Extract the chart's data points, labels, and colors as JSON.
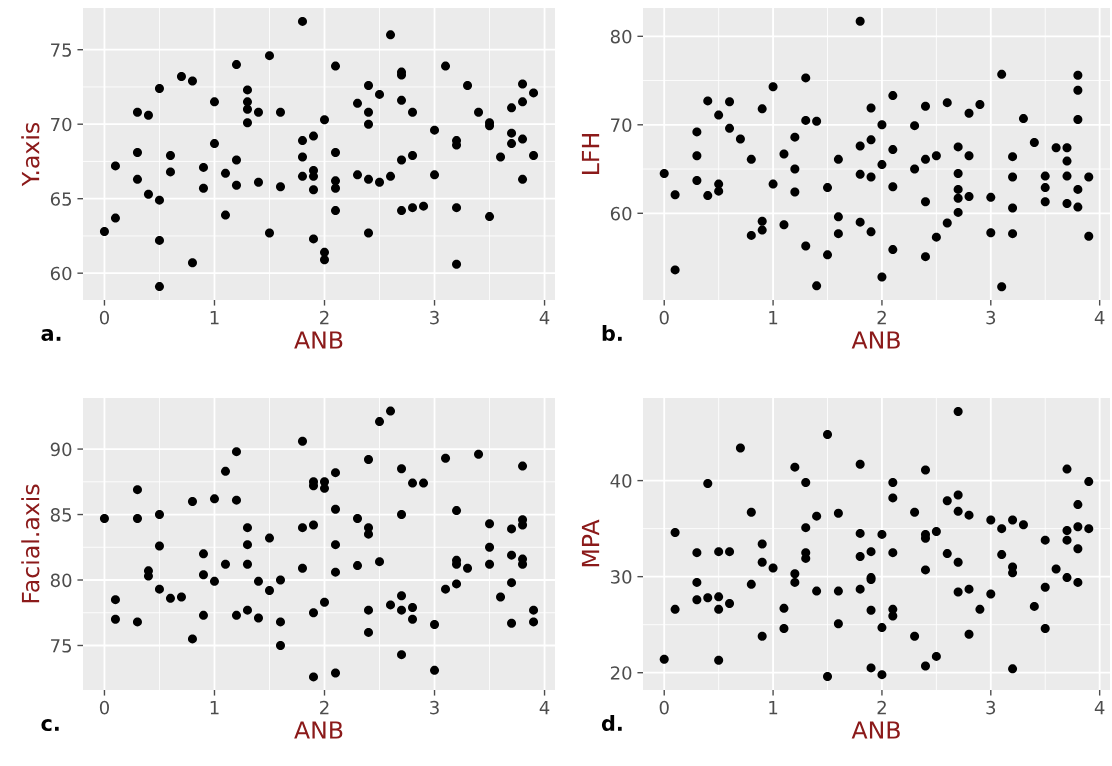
{
  "chart_data": [
    {
      "type": "scatter",
      "xlabel": "ANB",
      "ylabel": "Y.axis",
      "annotations": [
        "a."
      ],
      "xlim": [
        -0.195,
        4.095
      ],
      "xticks": [
        0,
        1,
        2,
        3,
        4
      ],
      "ylim": [
        58.2,
        77.8
      ],
      "yticks": [
        60,
        65,
        70,
        75
      ],
      "grid": true,
      "marker": "circle",
      "series": [
        {
          "color": "#000000",
          "x": [
            1.8,
            2.6,
            1.5,
            1.2,
            2.1,
            3.1,
            2.7,
            2.7,
            0.7,
            0.8,
            0.5,
            1.3,
            2.4,
            2.5,
            3.3,
            3.8,
            3.9,
            3.8,
            3.7,
            1.0,
            1.3,
            1.3,
            1.4,
            1.6,
            0.3,
            0.4,
            1.3,
            2.0,
            2.3,
            2.4,
            2.4,
            2.7,
            2.8,
            3.4,
            3.5,
            3.5,
            3.0,
            3.2,
            3.2,
            3.7,
            3.8,
            3.7,
            1.9,
            1.8,
            1.0,
            0.3,
            0.6,
            1.8,
            2.1,
            2.8,
            2.7,
            3.6,
            3.9,
            0.1,
            0.6,
            0.9,
            1.2,
            1.1,
            1.9,
            1.9,
            1.8,
            2.3,
            2.4,
            2.5,
            2.6,
            3.0,
            2.1,
            2.1,
            0.3,
            0.9,
            1.2,
            1.4,
            1.6,
            1.9,
            0.4,
            0.5,
            3.8,
            2.1,
            2.7,
            2.8,
            2.9,
            3.2,
            3.5,
            0.1,
            1.1,
            0.0,
            0.5,
            1.5,
            2.4,
            1.9,
            2.0,
            2.0,
            0.8,
            3.2,
            0.5
          ],
          "values": [
            76.9,
            76.0,
            74.6,
            74.0,
            73.9,
            73.9,
            73.5,
            73.3,
            73.2,
            72.9,
            72.4,
            72.3,
            72.6,
            72.0,
            72.6,
            72.7,
            72.1,
            71.5,
            71.1,
            71.5,
            71.5,
            71.0,
            70.8,
            70.8,
            70.8,
            70.6,
            70.1,
            70.3,
            71.4,
            70.8,
            70.0,
            71.6,
            70.8,
            70.8,
            70.1,
            69.9,
            69.6,
            68.9,
            68.6,
            69.4,
            69.0,
            68.7,
            69.2,
            68.9,
            68.7,
            68.1,
            67.9,
            67.8,
            68.1,
            67.9,
            67.6,
            67.8,
            67.9,
            67.2,
            66.8,
            67.1,
            67.6,
            66.7,
            66.9,
            66.5,
            66.5,
            66.6,
            66.3,
            66.1,
            66.5,
            66.6,
            66.2,
            65.7,
            66.3,
            65.7,
            65.9,
            66.1,
            65.8,
            65.6,
            65.3,
            64.9,
            66.3,
            64.2,
            64.2,
            64.4,
            64.5,
            64.4,
            63.8,
            63.7,
            63.9,
            62.8,
            62.2,
            62.7,
            62.7,
            62.3,
            61.4,
            60.9,
            60.7,
            60.6,
            59.1
          ]
        }
      ]
    },
    {
      "type": "scatter",
      "xlabel": "ANB",
      "ylabel": "LFH",
      "annotations": [
        "b."
      ],
      "xlim": [
        -0.195,
        4.095
      ],
      "xticks": [
        0,
        1,
        2,
        3,
        4
      ],
      "ylim": [
        50.2,
        83.2
      ],
      "yticks": [
        60,
        70,
        80
      ],
      "grid": true,
      "marker": "circle",
      "series": [
        {
          "color": "#000000",
          "x": [
            1.8,
            3.1,
            3.8,
            3.8,
            3.8,
            1.3,
            1.0,
            2.1,
            0.4,
            0.6,
            0.9,
            1.9,
            2.4,
            2.6,
            2.9,
            2.8,
            0.5,
            1.3,
            1.4,
            2.0,
            2.3,
            3.3,
            0.3,
            0.6,
            0.7,
            1.2,
            3.4,
            1.8,
            1.9,
            2.1,
            2.7,
            3.6,
            3.7,
            3.7,
            0.3,
            0.8,
            1.1,
            1.6,
            2.4,
            2.5,
            2.8,
            3.2,
            2.0,
            0.0,
            1.2,
            2.3,
            1.8,
            1.9,
            2.7,
            3.2,
            3.5,
            3.7,
            3.9,
            0.3,
            0.5,
            0.5,
            1.0,
            0.1,
            0.4,
            1.2,
            1.5,
            2.1,
            2.7,
            2.7,
            2.8,
            3.0,
            3.5,
            3.8,
            2.4,
            3.5,
            3.7,
            3.8,
            3.2,
            2.7,
            1.6,
            0.9,
            0.9,
            0.8,
            1.1,
            1.8,
            1.9,
            1.6,
            2.6,
            2.5,
            3.0,
            3.2,
            3.9,
            1.3,
            1.5,
            2.1,
            2.4,
            0.1,
            2.0,
            1.4,
            3.1
          ],
          "values": [
            81.7,
            75.7,
            75.6,
            73.9,
            70.6,
            75.3,
            74.3,
            73.3,
            72.7,
            72.6,
            71.8,
            71.9,
            72.1,
            72.5,
            72.3,
            71.3,
            71.1,
            70.5,
            70.4,
            70.0,
            69.9,
            70.7,
            69.2,
            69.6,
            68.4,
            68.6,
            68.0,
            67.6,
            68.3,
            67.2,
            67.5,
            67.4,
            67.4,
            65.9,
            66.5,
            66.1,
            66.7,
            66.1,
            66.1,
            66.5,
            66.5,
            66.4,
            65.5,
            64.5,
            65.0,
            65.0,
            64.4,
            64.1,
            64.5,
            64.1,
            64.2,
            64.2,
            64.1,
            63.7,
            63.3,
            62.5,
            63.3,
            62.1,
            62.0,
            62.4,
            62.9,
            63.0,
            62.7,
            61.7,
            61.9,
            61.8,
            62.9,
            62.7,
            61.3,
            61.3,
            61.1,
            60.7,
            60.6,
            60.1,
            59.6,
            59.1,
            58.1,
            57.5,
            58.7,
            59.0,
            57.9,
            57.7,
            58.9,
            57.3,
            57.8,
            57.7,
            57.4,
            56.3,
            55.3,
            55.9,
            55.1,
            53.6,
            52.8,
            51.8,
            51.7
          ]
        }
      ]
    },
    {
      "type": "scatter",
      "xlabel": "ANB",
      "ylabel": "Facial.axis",
      "annotations": [
        "c."
      ],
      "xlim": [
        -0.195,
        4.095
      ],
      "xticks": [
        0,
        1,
        2,
        3,
        4
      ],
      "ylim": [
        71.6,
        93.9
      ],
      "yticks": [
        75,
        80,
        85,
        90
      ],
      "grid": true,
      "marker": "circle",
      "series": [
        {
          "color": "#000000",
          "x": [
            2.6,
            2.5,
            1.8,
            1.2,
            3.4,
            2.4,
            3.1,
            3.8,
            1.1,
            2.7,
            2.1,
            1.9,
            1.9,
            2.0,
            2.0,
            2.8,
            2.9,
            0.3,
            0.8,
            1.0,
            1.2,
            2.1,
            3.2,
            0.0,
            0.3,
            0.5,
            2.7,
            2.3,
            3.8,
            3.8,
            3.5,
            3.7,
            1.3,
            1.8,
            1.9,
            2.4,
            2.4,
            1.5,
            0.5,
            1.3,
            2.1,
            3.5,
            3.7,
            3.8,
            3.8,
            0.9,
            2.5,
            3.2,
            3.2,
            3.3,
            3.5,
            1.1,
            1.3,
            1.8,
            2.3,
            2.1,
            0.4,
            0.4,
            0.9,
            1.0,
            1.4,
            1.6,
            3.2,
            3.7,
            0.5,
            1.5,
            3.1,
            0.1,
            0.6,
            0.7,
            3.6,
            2.7,
            2.0,
            2.6,
            2.7,
            2.8,
            2.4,
            3.9,
            1.3,
            1.9,
            0.1,
            0.3,
            0.9,
            1.2,
            1.4,
            1.6,
            2.8,
            3.0,
            3.7,
            3.9,
            2.4,
            0.8,
            1.6,
            2.7,
            3.0,
            1.9,
            2.1
          ],
          "values": [
            92.9,
            92.1,
            90.6,
            89.8,
            89.6,
            89.2,
            89.3,
            88.7,
            88.3,
            88.5,
            88.2,
            87.5,
            87.2,
            87.5,
            87.0,
            87.4,
            87.4,
            86.9,
            86.0,
            86.2,
            86.1,
            85.4,
            85.3,
            84.7,
            84.7,
            85.0,
            85.0,
            84.7,
            84.6,
            84.2,
            84.3,
            83.9,
            84.0,
            84.0,
            84.2,
            84.0,
            83.5,
            83.2,
            82.6,
            82.7,
            82.7,
            82.5,
            81.9,
            81.6,
            81.2,
            82.0,
            81.4,
            81.5,
            81.2,
            80.9,
            81.2,
            81.2,
            81.2,
            80.9,
            81.1,
            80.6,
            80.7,
            80.3,
            80.4,
            79.9,
            79.9,
            80.0,
            79.7,
            79.8,
            79.3,
            79.2,
            79.3,
            78.5,
            78.6,
            78.7,
            78.7,
            78.8,
            78.3,
            78.1,
            77.7,
            77.9,
            77.7,
            77.7,
            77.7,
            77.5,
            77.0,
            76.8,
            77.3,
            77.3,
            77.1,
            76.8,
            77.0,
            76.6,
            76.7,
            76.8,
            76.0,
            75.5,
            75.0,
            74.3,
            73.1,
            72.6,
            72.9
          ]
        }
      ]
    },
    {
      "type": "scatter",
      "xlabel": "ANB",
      "ylabel": "MPA",
      "annotations": [
        "d."
      ],
      "xlim": [
        -0.195,
        4.095
      ],
      "xticks": [
        0,
        1,
        2,
        3,
        4
      ],
      "ylim": [
        18.2,
        48.6
      ],
      "yticks": [
        20,
        30,
        40
      ],
      "grid": true,
      "marker": "circle",
      "series": [
        {
          "color": "#000000",
          "x": [
            2.7,
            1.5,
            0.7,
            1.2,
            1.8,
            2.4,
            3.7,
            0.4,
            1.3,
            2.1,
            3.9,
            2.1,
            2.7,
            2.6,
            3.8,
            0.8,
            1.4,
            1.6,
            2.3,
            2.7,
            2.8,
            3.0,
            3.2,
            3.3,
            3.1,
            1.3,
            0.1,
            1.8,
            2.0,
            2.4,
            2.4,
            2.5,
            3.7,
            3.8,
            3.9,
            3.5,
            3.7,
            3.8,
            0.9,
            0.3,
            0.5,
            0.6,
            1.3,
            1.3,
            1.8,
            1.9,
            2.1,
            2.6,
            3.1,
            2.7,
            0.9,
            1.0,
            2.4,
            3.2,
            3.2,
            3.6,
            1.2,
            1.2,
            1.9,
            1.9,
            3.7,
            3.8,
            0.3,
            0.8,
            1.4,
            1.6,
            1.8,
            2.7,
            2.8,
            3.0,
            3.5,
            0.4,
            0.3,
            0.5,
            0.6,
            0.1,
            0.5,
            1.1,
            1.9,
            2.1,
            2.1,
            2.9,
            3.4,
            1.6,
            1.1,
            2.0,
            3.5,
            0.9,
            2.3,
            2.8,
            2.5,
            0.0,
            0.5,
            2.4,
            1.9,
            3.2,
            2.0,
            1.5
          ],
          "values": [
            47.2,
            44.8,
            43.4,
            41.4,
            41.7,
            41.1,
            41.2,
            39.7,
            39.8,
            39.8,
            39.9,
            38.2,
            38.5,
            37.9,
            37.5,
            36.7,
            36.3,
            36.6,
            36.7,
            36.8,
            36.4,
            35.9,
            35.9,
            35.4,
            35.0,
            35.1,
            34.6,
            34.5,
            34.4,
            34.4,
            34.0,
            34.7,
            34.8,
            35.2,
            35.0,
            33.8,
            33.8,
            32.9,
            33.4,
            32.5,
            32.6,
            32.6,
            32.5,
            31.9,
            32.1,
            32.6,
            32.5,
            32.4,
            32.3,
            31.5,
            31.5,
            30.9,
            30.7,
            31.0,
            30.4,
            30.8,
            30.3,
            29.4,
            29.9,
            29.7,
            29.9,
            29.4,
            29.4,
            29.2,
            28.5,
            28.5,
            28.7,
            28.4,
            28.7,
            28.2,
            28.9,
            27.8,
            27.6,
            27.9,
            27.2,
            26.6,
            26.6,
            26.7,
            26.5,
            26.6,
            25.9,
            26.6,
            26.9,
            25.1,
            24.6,
            24.7,
            24.6,
            23.8,
            23.8,
            24.0,
            21.7,
            21.4,
            21.3,
            20.7,
            20.5,
            20.4,
            19.8,
            19.6
          ]
        }
      ]
    }
  ]
}
